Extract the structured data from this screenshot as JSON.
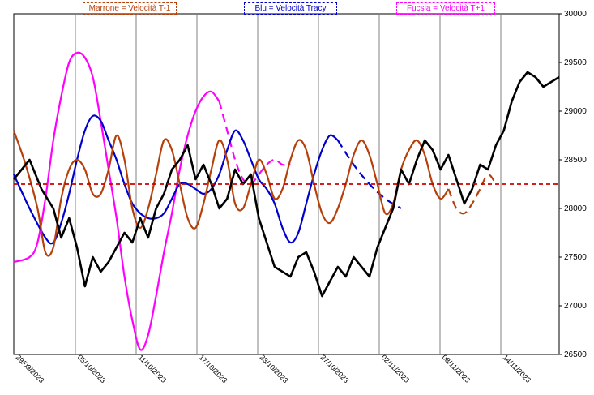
{
  "chart_data": {
    "type": "line",
    "x_tick_labels": [
      "29/09/2023",
      "05/10/2023",
      "11/10/2023",
      "17/10/2023",
      "23/10/2023",
      "27/10/2023",
      "02/11/2023",
      "08/11/2023",
      "14/11/2023"
    ],
    "y_tick_labels": [
      "30000",
      "29500",
      "29000",
      "28500",
      "28000",
      "27500",
      "27000",
      "26500"
    ],
    "ylim": [
      26500,
      30000
    ],
    "reference_line": {
      "value": 28250,
      "color": "#cc0000"
    },
    "legend": [
      {
        "label": "Marrone = Velocità T-1",
        "color": "#b5400a"
      },
      {
        "label": "Blu = Velocità Tracy",
        "color": "#0000cc"
      },
      {
        "label": "Fucsia = Velocità T+1",
        "color": "#ff00ff"
      }
    ],
    "series": [
      {
        "key": "black",
        "color": "#000000",
        "points": [
          [
            0,
            28300
          ],
          [
            4,
            28500
          ],
          [
            7,
            28200
          ],
          [
            10,
            28000
          ],
          [
            12,
            27700
          ],
          [
            14,
            27900
          ],
          [
            16,
            27600
          ],
          [
            18,
            27200
          ],
          [
            20,
            27500
          ],
          [
            22,
            27350
          ],
          [
            24,
            27450
          ],
          [
            26,
            27600
          ],
          [
            28,
            27750
          ],
          [
            30,
            27650
          ],
          [
            32,
            27900
          ],
          [
            34,
            27700
          ],
          [
            36,
            28000
          ],
          [
            38,
            28150
          ],
          [
            40,
            28400
          ],
          [
            42,
            28500
          ],
          [
            44,
            28650
          ],
          [
            46,
            28300
          ],
          [
            48,
            28450
          ],
          [
            50,
            28250
          ],
          [
            52,
            28000
          ],
          [
            54,
            28100
          ],
          [
            56,
            28400
          ],
          [
            58,
            28250
          ],
          [
            60,
            28350
          ],
          [
            62,
            27900
          ],
          [
            64,
            27650
          ],
          [
            66,
            27400
          ],
          [
            68,
            27350
          ],
          [
            70,
            27300
          ],
          [
            72,
            27500
          ],
          [
            74,
            27550
          ],
          [
            76,
            27350
          ],
          [
            78,
            27100
          ],
          [
            80,
            27250
          ],
          [
            82,
            27400
          ],
          [
            84,
            27300
          ],
          [
            86,
            27500
          ],
          [
            88,
            27400
          ],
          [
            90,
            27300
          ],
          [
            92,
            27600
          ],
          [
            94,
            27800
          ],
          [
            96,
            28000
          ],
          [
            98,
            28400
          ],
          [
            100,
            28250
          ],
          [
            102,
            28500
          ],
          [
            104,
            28700
          ],
          [
            106,
            28600
          ],
          [
            108,
            28400
          ],
          [
            110,
            28550
          ],
          [
            112,
            28300
          ],
          [
            114,
            28050
          ],
          [
            116,
            28200
          ],
          [
            118,
            28450
          ],
          [
            120,
            28400
          ],
          [
            122,
            28650
          ],
          [
            124,
            28800
          ],
          [
            126,
            29100
          ],
          [
            128,
            29300
          ],
          [
            130,
            29400
          ],
          [
            132,
            29350
          ],
          [
            134,
            29250
          ],
          [
            136,
            29300
          ],
          [
            138,
            29350
          ]
        ],
        "smooth": false
      },
      {
        "key": "brown",
        "color": "#b5400a",
        "points": [
          [
            0,
            28800
          ],
          [
            3,
            28450
          ],
          [
            6,
            28000
          ],
          [
            8,
            27550
          ],
          [
            10,
            27600
          ],
          [
            12,
            28100
          ],
          [
            14,
            28400
          ],
          [
            16,
            28500
          ],
          [
            18,
            28400
          ],
          [
            20,
            28150
          ],
          [
            22,
            28150
          ],
          [
            24,
            28400
          ],
          [
            26,
            28750
          ],
          [
            28,
            28500
          ],
          [
            30,
            28000
          ],
          [
            32,
            27800
          ],
          [
            34,
            28000
          ],
          [
            36,
            28350
          ],
          [
            38,
            28700
          ],
          [
            40,
            28600
          ],
          [
            42,
            28250
          ],
          [
            44,
            27900
          ],
          [
            46,
            27800
          ],
          [
            48,
            28050
          ],
          [
            50,
            28400
          ],
          [
            52,
            28700
          ],
          [
            54,
            28500
          ],
          [
            56,
            28050
          ],
          [
            58,
            28000
          ],
          [
            60,
            28250
          ],
          [
            62,
            28500
          ],
          [
            64,
            28350
          ],
          [
            66,
            28100
          ],
          [
            68,
            28200
          ],
          [
            70,
            28500
          ],
          [
            72,
            28700
          ],
          [
            74,
            28600
          ],
          [
            76,
            28250
          ],
          [
            78,
            27950
          ],
          [
            80,
            27850
          ],
          [
            82,
            28000
          ],
          [
            84,
            28250
          ],
          [
            86,
            28550
          ],
          [
            88,
            28700
          ],
          [
            90,
            28550
          ],
          [
            92,
            28250
          ],
          [
            94,
            27950
          ],
          [
            96,
            28050
          ],
          [
            98,
            28400
          ],
          [
            100,
            28600
          ],
          [
            102,
            28700
          ],
          [
            104,
            28550
          ],
          [
            106,
            28250
          ],
          [
            108,
            28100
          ],
          [
            110,
            28200
          ]
        ],
        "dashed_tail": [
          [
            110,
            28200
          ],
          [
            112,
            28000
          ],
          [
            114,
            27950
          ],
          [
            116,
            28050
          ],
          [
            118,
            28200
          ],
          [
            120,
            28350
          ],
          [
            122,
            28250
          ]
        ],
        "smooth": true
      },
      {
        "key": "blue",
        "color": "#0000cc",
        "points": [
          [
            0,
            28350
          ],
          [
            4,
            28000
          ],
          [
            8,
            27700
          ],
          [
            10,
            27650
          ],
          [
            12,
            27850
          ],
          [
            14,
            28150
          ],
          [
            16,
            28500
          ],
          [
            18,
            28800
          ],
          [
            20,
            28950
          ],
          [
            22,
            28900
          ],
          [
            24,
            28700
          ],
          [
            26,
            28500
          ],
          [
            28,
            28250
          ],
          [
            30,
            28050
          ],
          [
            32,
            27950
          ],
          [
            34,
            27900
          ],
          [
            36,
            27900
          ],
          [
            38,
            27950
          ],
          [
            40,
            28100
          ],
          [
            42,
            28250
          ],
          [
            44,
            28250
          ],
          [
            46,
            28200
          ],
          [
            48,
            28150
          ],
          [
            50,
            28200
          ],
          [
            52,
            28350
          ],
          [
            54,
            28600
          ],
          [
            56,
            28800
          ],
          [
            58,
            28700
          ],
          [
            60,
            28500
          ],
          [
            62,
            28300
          ],
          [
            64,
            28200
          ],
          [
            66,
            28050
          ],
          [
            68,
            27800
          ],
          [
            70,
            27650
          ],
          [
            72,
            27750
          ],
          [
            74,
            28050
          ],
          [
            76,
            28350
          ],
          [
            78,
            28600
          ],
          [
            80,
            28750
          ],
          [
            82,
            28700
          ]
        ],
        "dashed_tail": [
          [
            82,
            28700
          ],
          [
            86,
            28450
          ],
          [
            90,
            28250
          ],
          [
            94,
            28100
          ],
          [
            98,
            28000
          ]
        ],
        "smooth": true
      },
      {
        "key": "magenta",
        "color": "#ff00ff",
        "points": [
          [
            0,
            27450
          ],
          [
            4,
            27500
          ],
          [
            6,
            27650
          ],
          [
            8,
            28100
          ],
          [
            10,
            28700
          ],
          [
            12,
            29150
          ],
          [
            14,
            29500
          ],
          [
            16,
            29600
          ],
          [
            18,
            29550
          ],
          [
            20,
            29350
          ],
          [
            22,
            28900
          ],
          [
            24,
            28400
          ],
          [
            26,
            27900
          ],
          [
            28,
            27300
          ],
          [
            30,
            26850
          ],
          [
            32,
            26550
          ],
          [
            34,
            26700
          ],
          [
            36,
            27100
          ],
          [
            38,
            27550
          ],
          [
            40,
            27950
          ],
          [
            42,
            28400
          ],
          [
            44,
            28750
          ],
          [
            46,
            29000
          ],
          [
            48,
            29150
          ],
          [
            50,
            29200
          ],
          [
            52,
            29100
          ]
        ],
        "dashed_tail": [
          [
            52,
            29100
          ],
          [
            54,
            28800
          ],
          [
            56,
            28500
          ],
          [
            58,
            28300
          ],
          [
            60,
            28250
          ],
          [
            62,
            28350
          ],
          [
            64,
            28450
          ],
          [
            66,
            28500
          ],
          [
            68,
            28450
          ],
          [
            70,
            28450
          ]
        ],
        "smooth": true
      }
    ]
  }
}
